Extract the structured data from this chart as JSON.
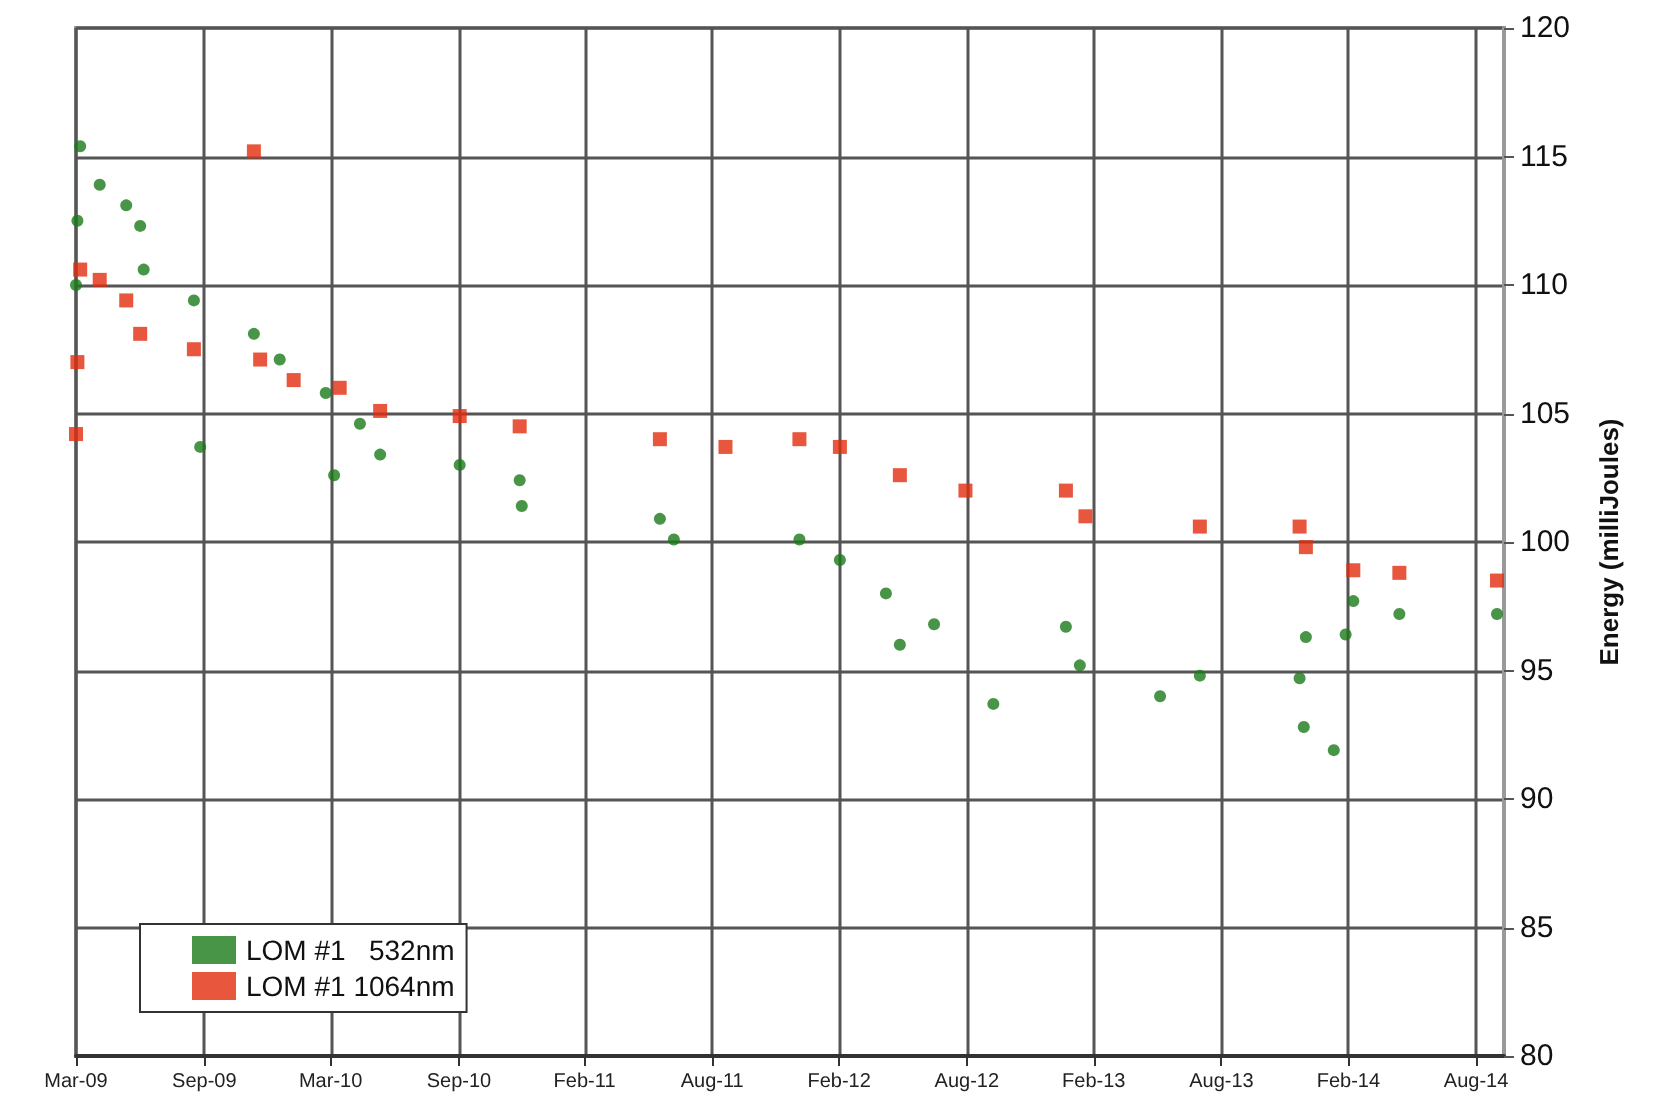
{
  "chart_data": {
    "type": "scatter",
    "ylabel": "Energy (milliJoules)",
    "xlim": [
      "2009-03-01",
      "2014-10-08"
    ],
    "xticks": [
      {
        "value": "2009-03-01",
        "label": "Mar-09"
      },
      {
        "value": "2009-09-01",
        "label": "Sep-09"
      },
      {
        "value": "2010-03-01",
        "label": "Mar-10"
      },
      {
        "value": "2010-09-01",
        "label": "Sep-10"
      },
      {
        "value": "2011-02-28",
        "label": "Feb-11"
      },
      {
        "value": "2011-08-30",
        "label": "Aug-11"
      },
      {
        "value": "2012-02-28",
        "label": "Feb-12"
      },
      {
        "value": "2012-08-29",
        "label": "Aug-12"
      },
      {
        "value": "2013-02-27",
        "label": "Feb-13"
      },
      {
        "value": "2013-08-29",
        "label": "Aug-13"
      },
      {
        "value": "2014-02-27",
        "label": "Feb-14"
      },
      {
        "value": "2014-08-29",
        "label": "Aug-14"
      }
    ],
    "ylim": [
      80,
      120
    ],
    "yticks": [
      80,
      85,
      90,
      95,
      100,
      105,
      110,
      115,
      120
    ],
    "grid": true,
    "legend": "bottom left",
    "series": [
      {
        "name": "LOM #1   532nm",
        "color": "#1a7a1a",
        "marker": "circle",
        "x": [
          "2009-03-01",
          "2009-03-03",
          "2009-03-07",
          "2009-04-04",
          "2009-05-12",
          "2009-06-01",
          "2009-06-06",
          "2009-08-17",
          "2009-08-26",
          "2009-11-11",
          "2009-12-18",
          "2010-02-22",
          "2010-03-06",
          "2010-04-12",
          "2010-05-11",
          "2010-09-02",
          "2010-11-27",
          "2010-11-30",
          "2011-06-16",
          "2011-07-06",
          "2012-01-02",
          "2012-02-29",
          "2012-05-05",
          "2012-05-25",
          "2012-07-13",
          "2012-10-06",
          "2013-01-18",
          "2013-02-07",
          "2013-06-02",
          "2013-07-29",
          "2013-12-19",
          "2013-12-25",
          "2013-12-28",
          "2014-02-06",
          "2014-02-23",
          "2014-03-06",
          "2014-05-11",
          "2014-09-28"
        ],
        "values": [
          110,
          112.5,
          115.4,
          113.9,
          113.1,
          112.3,
          110.6,
          109.4,
          103.7,
          108.1,
          107.1,
          105.8,
          102.6,
          104.6,
          103.4,
          103.0,
          102.4,
          101.4,
          100.9,
          100.1,
          100.1,
          99.3,
          98.0,
          96.0,
          96.8,
          93.7,
          96.7,
          95.2,
          94.0,
          94.8,
          94.7,
          92.8,
          96.3,
          91.9,
          96.4,
          97.7,
          97.2,
          97.2
        ]
      },
      {
        "name": "LOM #1 1064nm",
        "color": "#e22c0c",
        "marker": "square",
        "x": [
          "2009-03-01",
          "2009-03-03",
          "2009-03-07",
          "2009-04-04",
          "2009-05-12",
          "2009-06-01",
          "2009-08-17",
          "2009-11-11",
          "2009-11-20",
          "2010-01-07",
          "2010-03-14",
          "2010-05-11",
          "2010-09-02",
          "2010-11-27",
          "2011-06-16",
          "2011-09-18",
          "2012-01-02",
          "2012-02-29",
          "2012-05-25",
          "2012-08-27",
          "2013-01-18",
          "2013-02-15",
          "2013-07-29",
          "2013-12-19",
          "2013-12-28",
          "2014-03-06",
          "2014-05-11",
          "2014-09-28"
        ],
        "values": [
          104.2,
          107,
          110.6,
          110.2,
          109.4,
          108.1,
          107.5,
          115.2,
          107.1,
          106.3,
          106.0,
          105.1,
          104.9,
          104.5,
          104.0,
          103.7,
          104.0,
          103.7,
          102.6,
          102.0,
          102.0,
          101.0,
          100.6,
          100.6,
          99.8,
          98.9,
          98.8,
          98.5
        ]
      }
    ]
  }
}
